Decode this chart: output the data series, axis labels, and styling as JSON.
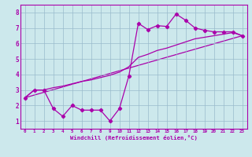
{
  "xlabel": "Windchill (Refroidissement éolien,°C)",
  "xlim": [
    -0.5,
    23.5
  ],
  "ylim": [
    0.5,
    8.5
  ],
  "xticks": [
    0,
    1,
    2,
    3,
    4,
    5,
    6,
    7,
    8,
    9,
    10,
    11,
    12,
    13,
    14,
    15,
    16,
    17,
    18,
    19,
    20,
    21,
    22,
    23
  ],
  "yticks": [
    1,
    2,
    3,
    4,
    5,
    6,
    7,
    8
  ],
  "bg_color": "#cce8ec",
  "line_color": "#aa00aa",
  "grid_color": "#99bbcc",
  "line1_x": [
    0,
    1,
    2,
    3,
    4,
    5,
    6,
    7,
    8,
    9,
    10,
    11,
    12,
    13,
    14,
    15,
    16,
    17,
    18,
    19,
    20,
    21,
    22,
    23
  ],
  "line1_y": [
    2.5,
    3.0,
    3.0,
    1.8,
    1.3,
    2.0,
    1.7,
    1.7,
    1.7,
    1.0,
    1.8,
    3.9,
    7.3,
    6.9,
    7.15,
    7.1,
    7.9,
    7.5,
    7.0,
    6.85,
    6.75,
    6.75,
    6.75,
    6.5
  ],
  "line2_x": [
    0,
    1,
    2,
    3,
    4,
    5,
    6,
    7,
    8,
    9,
    10,
    11,
    12,
    13,
    14,
    15,
    16,
    17,
    18,
    19,
    20,
    21,
    22,
    23
  ],
  "line2_y": [
    2.5,
    3.0,
    3.0,
    3.15,
    3.25,
    3.4,
    3.55,
    3.65,
    3.8,
    3.95,
    4.15,
    4.5,
    5.1,
    5.3,
    5.55,
    5.7,
    5.9,
    6.1,
    6.3,
    6.4,
    6.5,
    6.6,
    6.7,
    6.5
  ],
  "line3_x": [
    0,
    23
  ],
  "line3_y": [
    2.5,
    6.5
  ]
}
